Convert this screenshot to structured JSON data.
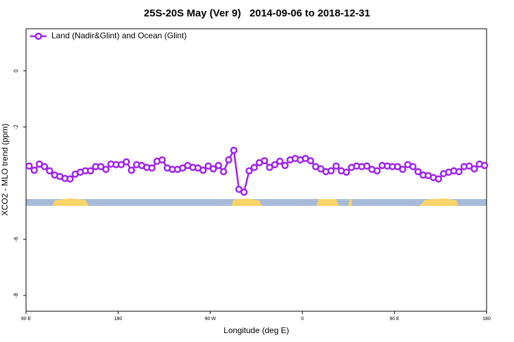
{
  "chart_data": {
    "type": "line",
    "title": "25S-20S May (Ver 9)   2014-09-06 to 2018-12-31",
    "xlabel": "Longitude (deg E)",
    "ylabel": "XCO2 - MLO trend (ppm)",
    "legend": "top-left",
    "xlim": [
      90,
      540
    ],
    "ylim": [
      1.5,
      -8.56
    ],
    "xticks": [
      {
        "value": 90,
        "label": "90 E"
      },
      180,
      {
        "value": 270,
        "label": "90 W"
      },
      {
        "value": 360,
        "label": "0"
      },
      {
        "value": 450,
        "label": "90 E"
      },
      {
        "value": 540,
        "label": "180"
      }
    ],
    "yticks": [
      0,
      -2,
      -6,
      -8
    ],
    "x": [
      93,
      98,
      103,
      108,
      113,
      118,
      123,
      128,
      133,
      138,
      143,
      148,
      153,
      158,
      163,
      168,
      173,
      178,
      183,
      188,
      193,
      198,
      203,
      208,
      213,
      218,
      223,
      228,
      233,
      238,
      243,
      248,
      253,
      258,
      263,
      268,
      273,
      278,
      283,
      288,
      293,
      298,
      303,
      308,
      313,
      318,
      323,
      328,
      333,
      338,
      343,
      348,
      353,
      358,
      363,
      368,
      373,
      378,
      383,
      388,
      393,
      398,
      403,
      408,
      413,
      418,
      423,
      428,
      433,
      438,
      443,
      448,
      453,
      458,
      463,
      468,
      473,
      478,
      483,
      488,
      493,
      498,
      503,
      508,
      513,
      518,
      523,
      528,
      533,
      538
    ],
    "series": [
      {
        "name": "Land (Nadir&Glint) and Ocean (Glint)",
        "color": "#a020f0",
        "values": [
          -3.39,
          -3.54,
          -3.32,
          -3.41,
          -3.56,
          -3.71,
          -3.76,
          -3.83,
          -3.85,
          -3.68,
          -3.61,
          -3.56,
          -3.56,
          -3.41,
          -3.41,
          -3.51,
          -3.32,
          -3.34,
          -3.34,
          -3.24,
          -3.54,
          -3.34,
          -3.37,
          -3.44,
          -3.46,
          -3.22,
          -3.17,
          -3.46,
          -3.51,
          -3.51,
          -3.46,
          -3.37,
          -3.44,
          -3.46,
          -3.54,
          -3.39,
          -3.49,
          -3.37,
          -3.59,
          -3.17,
          -2.83,
          -4.22,
          -4.32,
          -3.56,
          -3.44,
          -3.27,
          -3.2,
          -3.44,
          -3.34,
          -3.22,
          -3.37,
          -3.17,
          -3.12,
          -3.17,
          -3.12,
          -3.2,
          -3.41,
          -3.49,
          -3.59,
          -3.56,
          -3.39,
          -3.56,
          -3.61,
          -3.44,
          -3.39,
          -3.41,
          -3.39,
          -3.51,
          -3.56,
          -3.37,
          -3.39,
          -3.41,
          -3.41,
          -3.51,
          -3.34,
          -3.41,
          -3.59,
          -3.71,
          -3.73,
          -3.8,
          -3.85,
          -3.66,
          -3.61,
          -3.56,
          -3.59,
          -3.41,
          -3.39,
          -3.49,
          -3.32,
          -3.37
        ]
      }
    ]
  }
}
